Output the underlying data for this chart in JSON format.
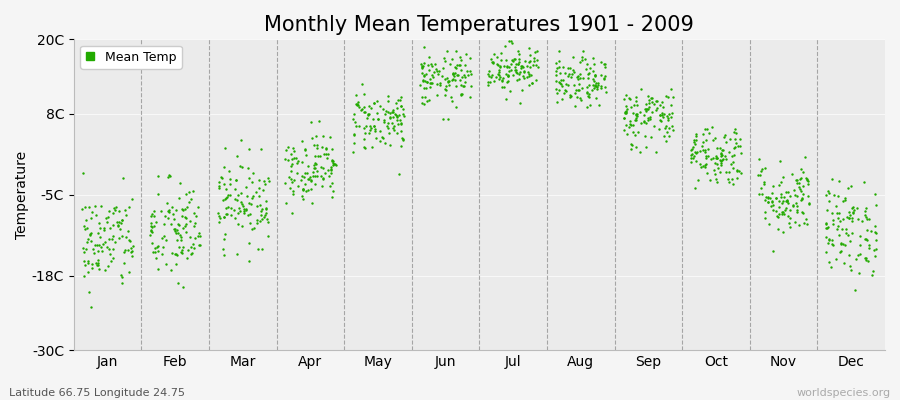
{
  "title": "Monthly Mean Temperatures 1901 - 2009",
  "ylabel": "Temperature",
  "subtitle": "Latitude 66.75 Longitude 24.75",
  "watermark": "worldspecies.org",
  "months": [
    "Jan",
    "Feb",
    "Mar",
    "Apr",
    "May",
    "Jun",
    "Jul",
    "Aug",
    "Sep",
    "Oct",
    "Nov",
    "Dec"
  ],
  "month_means": [
    -12.5,
    -11.0,
    -6.0,
    -0.5,
    7.0,
    13.5,
    15.5,
    13.0,
    7.5,
    1.5,
    -5.5,
    -10.5
  ],
  "month_stds": [
    4.0,
    4.2,
    3.5,
    2.8,
    2.5,
    2.2,
    2.0,
    2.0,
    2.5,
    2.5,
    3.0,
    3.8
  ],
  "n_years": 109,
  "dot_color": "#22aa00",
  "dot_size": 3,
  "background_color": "#f5f5f5",
  "plot_bg_color": "#ebebeb",
  "grid_color": "#888888",
  "ylim": [
    -30,
    20
  ],
  "yticks": [
    -30,
    -18,
    -5,
    8,
    20
  ],
  "ytick_labels": [
    "-30C",
    "-18C",
    "-5C",
    "8C",
    "20C"
  ],
  "title_fontsize": 15,
  "axis_fontsize": 10,
  "tick_fontsize": 10,
  "legend_fontsize": 9
}
